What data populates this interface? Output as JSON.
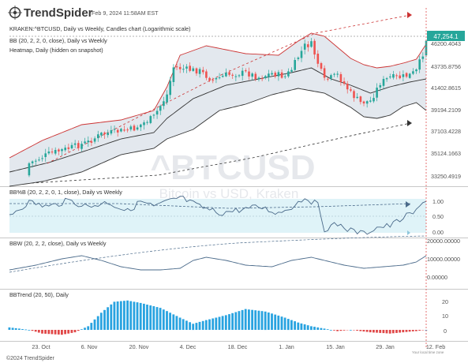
{
  "header": {
    "brand": "TrendSpider",
    "timestamp": "Feb 9, 2024 11:58AM EST",
    "symbol_line": "KRAKEN:^BTCUSD, Daily vs Weekly, Candles chart (Logarithmic scale)",
    "bb_line": "BB (20, 2, 2, 0, close), Daily vs Weekly",
    "heatmap_line": "Heatmap, Daily (hidden on snapshot)"
  },
  "watermark": {
    "symbol": "^BTCUSD",
    "desc": "Bitcoin vs USD, Kraken"
  },
  "price_axis": {
    "current_price": "47,254.1",
    "ticks": [
      "46200.4043",
      "43735.8756",
      "41402.8615",
      "39194.2109",
      "37103.4228",
      "35124.1663",
      "33250.4919"
    ]
  },
  "panels": {
    "bbpct": {
      "title": "BB%B (20, 2, 2, 0, 1, close), Daily vs Weekly",
      "ticks": [
        "1.00",
        "0.50",
        "0.00"
      ]
    },
    "bbw": {
      "title": "BBW (20, 2, 2, close), Daily vs Weekly",
      "ticks": [
        "20000.00000",
        "10000.00000",
        "0.00000"
      ]
    },
    "bbtrend": {
      "title": "BBTrend (20, 50), Daily",
      "ticks": [
        "20",
        "10",
        "0"
      ]
    }
  },
  "x_axis": {
    "labels": [
      "23. Oct",
      "6. Nov",
      "20. Nov",
      "4. Dec",
      "18. Dec",
      "1. Jan",
      "15. Jan",
      "29. Jan",
      "12. Feb"
    ],
    "local_time_note": "Your local time zone"
  },
  "footer": {
    "copyright": "©2024 TrendSpider"
  },
  "colors": {
    "bull": "#26a69a",
    "bear": "#ef5350",
    "bb_band": "#cc3333",
    "bb_fill": "#e3e8ee",
    "indicator_line": "#4a6a8a",
    "pct_fill": "#dff3f8",
    "trend_bull": "#29a3e0",
    "trend_bear": "#e04848",
    "price_tag": "#26a69a"
  }
}
